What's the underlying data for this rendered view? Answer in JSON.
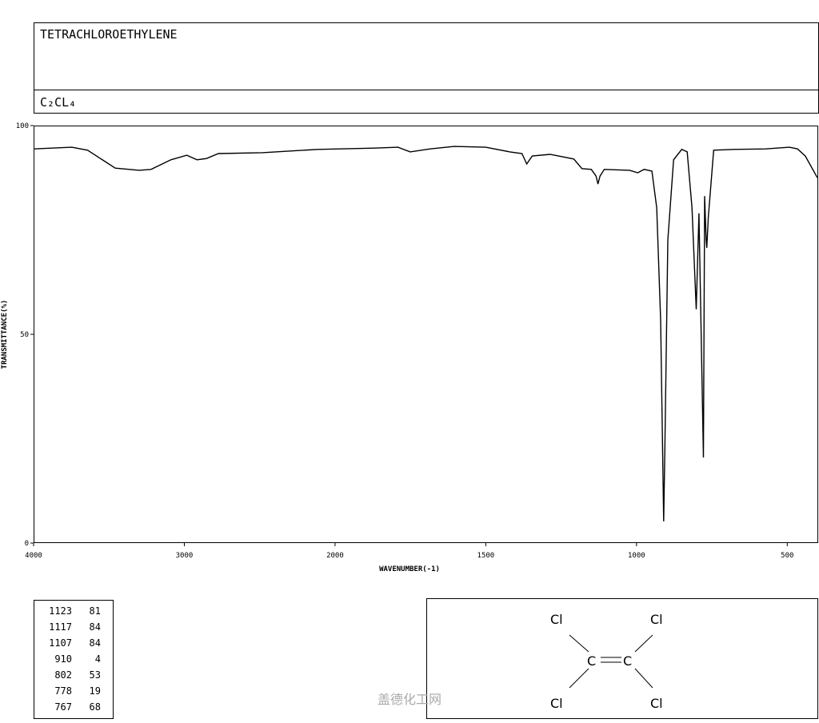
{
  "title": "TETRACHLOROETHYLENE",
  "formula": "C₂CL₄",
  "chart_data": {
    "type": "line",
    "x_label": "WAVENUMBER(-1)",
    "y_label": "TRANSMITTANCE(%)",
    "x": [
      4000,
      3747,
      3642,
      3458,
      3300,
      3221,
      3089,
      2984,
      2916,
      2853,
      2774,
      2484,
      2116,
      1870,
      1791,
      1751,
      1685,
      1605,
      1500,
      1420,
      1380,
      1364,
      1346,
      1287,
      1208,
      1181,
      1150,
      1134,
      1128,
      1121,
      1107,
      1023,
      996,
      975,
      949,
      933,
      920,
      910,
      906,
      896,
      877,
      850,
      832,
      816,
      802,
      793,
      778,
      774,
      769,
      767,
      762,
      744,
      678,
      572,
      493,
      466,
      440,
      400
    ],
    "values": [
      94.4,
      94.8,
      94.1,
      89.8,
      89.3,
      89.5,
      91.8,
      92.9,
      91.8,
      92.1,
      93.3,
      93.5,
      94.3,
      94.6,
      94.8,
      93.7,
      94.4,
      95.0,
      94.8,
      93.7,
      93.3,
      90.8,
      92.7,
      93.1,
      92.0,
      89.7,
      89.5,
      87.9,
      86.0,
      87.9,
      89.5,
      89.3,
      88.7,
      89.5,
      89.1,
      80.3,
      53.4,
      5.2,
      22.8,
      72.6,
      91.8,
      94.3,
      93.7,
      80.3,
      56.0,
      79.0,
      20.5,
      83.1,
      72.6,
      70.7,
      78.0,
      94.1,
      94.3,
      94.4,
      94.8,
      94.4,
      92.7,
      87.5
    ],
    "color": "#000000",
    "xlim": [
      4000,
      400
    ],
    "ylim": [
      0,
      100
    ],
    "xticks": [
      4000,
      3000,
      2000,
      1500,
      1000,
      500
    ],
    "yticks": [
      0,
      50,
      100
    ],
    "x_scale_break": 2000,
    "x_scale_ratio": 2
  },
  "peak_table": {
    "rows": [
      [
        "1123",
        "81"
      ],
      [
        "1117",
        "84"
      ],
      [
        "1107",
        "84"
      ],
      [
        "910",
        "4"
      ],
      [
        "802",
        "53"
      ],
      [
        "778",
        "19"
      ],
      [
        "767",
        "68"
      ]
    ]
  },
  "structure": {
    "atoms": [
      "Cl",
      "Cl",
      "C",
      "C",
      "Cl",
      "Cl"
    ]
  },
  "watermark": "盖德化工网"
}
